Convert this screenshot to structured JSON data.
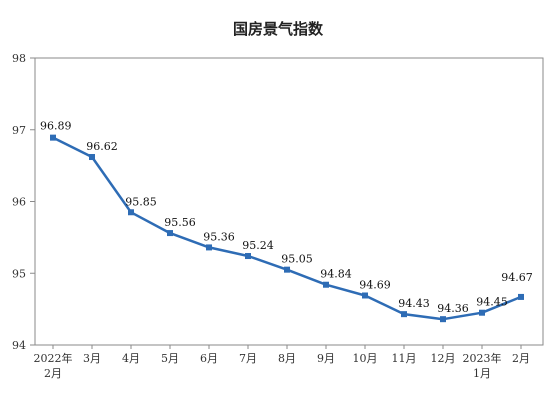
{
  "chart_data": {
    "type": "line",
    "title": "国房景气指数",
    "categories": [
      [
        "2022年",
        "2月"
      ],
      [
        "3月"
      ],
      [
        "4月"
      ],
      [
        "5月"
      ],
      [
        "6月"
      ],
      [
        "7月"
      ],
      [
        "8月"
      ],
      [
        "9月"
      ],
      [
        "10月"
      ],
      [
        "11月"
      ],
      [
        "12月"
      ],
      [
        "2023年",
        "1月"
      ],
      [
        "2月"
      ]
    ],
    "values": [
      96.89,
      96.62,
      95.85,
      95.56,
      95.36,
      95.24,
      95.05,
      94.84,
      94.69,
      94.43,
      94.36,
      94.45,
      94.67
    ],
    "data_labels": [
      "96.89",
      "96.62",
      "95.85",
      "95.56",
      "95.36",
      "95.24",
      "95.05",
      "94.84",
      "94.69",
      "94.43",
      "94.36",
      "94.45",
      "94.67"
    ],
    "yticks": [
      94,
      95,
      96,
      97,
      98
    ],
    "ylim": [
      94,
      98
    ],
    "line_color": "#2e6cb5",
    "frame_color": "#8a8a8a",
    "grid": false
  }
}
